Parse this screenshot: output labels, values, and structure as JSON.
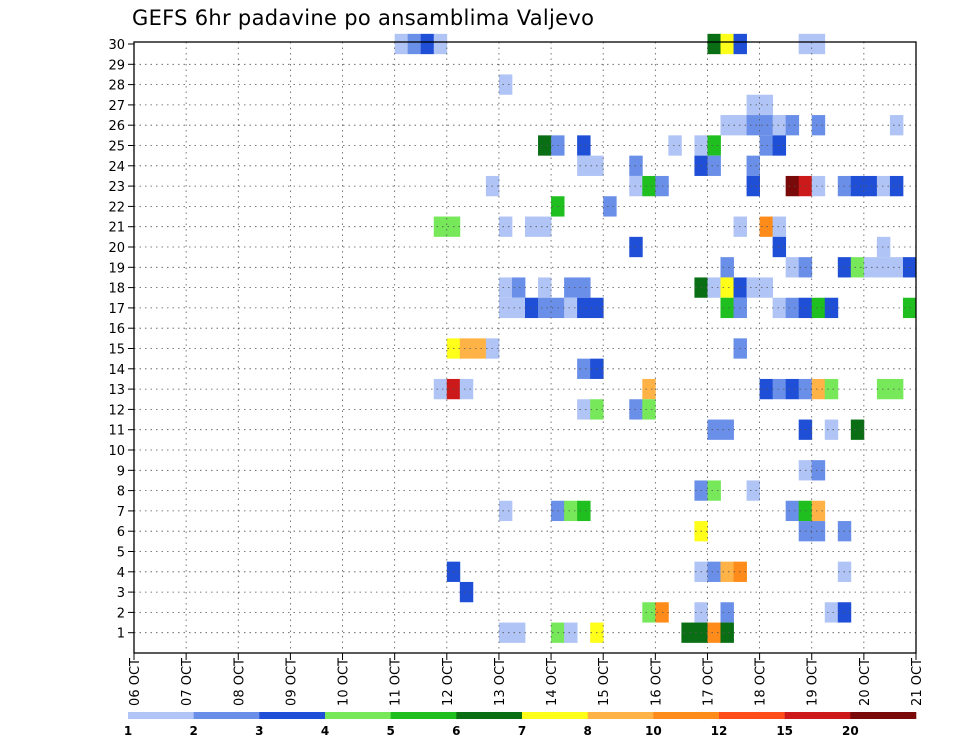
{
  "chart_data": {
    "type": "heatmap",
    "title": "GEFS 6hr padavine po ansamblima Valjevo",
    "xlabel": "",
    "ylabel": "",
    "x_ticks": [
      "06 OCT",
      "07 OCT",
      "08 OCT",
      "09 OCT",
      "10 OCT",
      "11 OCT",
      "12 OCT",
      "13 OCT",
      "14 OCT",
      "15 OCT",
      "16 OCT",
      "17 OCT",
      "18 OCT",
      "19 OCT",
      "20 OCT",
      "21 OCT"
    ],
    "y_ticks": [
      "1",
      "2",
      "3",
      "4",
      "5",
      "6",
      "7",
      "8",
      "9",
      "10",
      "11",
      "12",
      "13",
      "14",
      "15",
      "16",
      "17",
      "18",
      "19",
      "20",
      "21",
      "22",
      "23",
      "24",
      "25",
      "26",
      "27",
      "28",
      "29",
      "30"
    ],
    "x_range_days": [
      0,
      15
    ],
    "y_range": [
      0,
      30
    ],
    "grid": "dotted",
    "legend_position": "bottom",
    "colorbar": {
      "labels": [
        "1",
        "2",
        "3",
        "4",
        "5",
        "6",
        "7",
        "8",
        "10",
        "12",
        "15",
        "20"
      ],
      "colors": [
        "#b0c4f5",
        "#6a8fe8",
        "#1f4fd6",
        "#76e85a",
        "#1fbf1f",
        "#0a6e14",
        "#ffff1a",
        "#ffb347",
        "#ff8c1a",
        "#ff4d1a",
        "#cc1a1a",
        "#7a0a0a"
      ]
    },
    "cells": [
      [
        5.0,
        30,
        1
      ],
      [
        5.25,
        30,
        2
      ],
      [
        5.5,
        30,
        3
      ],
      [
        5.75,
        30,
        1
      ],
      [
        11.0,
        30,
        6
      ],
      [
        11.25,
        30,
        7
      ],
      [
        11.5,
        30,
        3
      ],
      [
        12.75,
        30,
        1
      ],
      [
        13.0,
        30,
        1
      ],
      [
        7.0,
        28,
        1
      ],
      [
        11.75,
        27,
        1
      ],
      [
        12.0,
        27,
        1
      ],
      [
        11.25,
        26,
        1
      ],
      [
        11.5,
        26,
        1
      ],
      [
        11.75,
        26,
        2
      ],
      [
        12.0,
        26,
        2
      ],
      [
        12.25,
        26,
        1
      ],
      [
        12.5,
        26,
        2
      ],
      [
        13.0,
        26,
        2
      ],
      [
        14.5,
        26,
        1
      ],
      [
        7.75,
        25,
        6
      ],
      [
        8.0,
        25,
        2
      ],
      [
        8.5,
        25,
        3
      ],
      [
        10.25,
        25,
        1
      ],
      [
        10.75,
        25,
        1
      ],
      [
        11.0,
        25,
        5
      ],
      [
        12.0,
        25,
        2
      ],
      [
        12.25,
        25,
        3
      ],
      [
        8.5,
        24,
        1
      ],
      [
        8.75,
        24,
        1
      ],
      [
        9.5,
        24,
        2
      ],
      [
        10.75,
        24,
        3
      ],
      [
        11.0,
        24,
        2
      ],
      [
        11.75,
        24,
        2
      ],
      [
        6.75,
        23,
        1
      ],
      [
        9.5,
        23,
        1
      ],
      [
        9.75,
        23,
        5
      ],
      [
        10.0,
        23,
        2
      ],
      [
        11.75,
        23,
        3
      ],
      [
        12.5,
        23,
        12
      ],
      [
        12.75,
        23,
        11
      ],
      [
        13.0,
        23,
        1
      ],
      [
        13.5,
        23,
        2
      ],
      [
        13.75,
        23,
        3
      ],
      [
        14.0,
        23,
        3
      ],
      [
        14.25,
        23,
        1
      ],
      [
        14.5,
        23,
        3
      ],
      [
        8.0,
        22,
        5
      ],
      [
        9.0,
        22,
        2
      ],
      [
        5.75,
        21,
        4
      ],
      [
        6.0,
        21,
        4
      ],
      [
        7.0,
        21,
        1
      ],
      [
        7.5,
        21,
        1
      ],
      [
        7.75,
        21,
        1
      ],
      [
        11.5,
        21,
        1
      ],
      [
        12.0,
        21,
        9
      ],
      [
        12.25,
        21,
        1
      ],
      [
        9.5,
        20,
        3
      ],
      [
        12.25,
        20,
        3
      ],
      [
        14.25,
        20,
        1
      ],
      [
        11.25,
        19,
        2
      ],
      [
        12.5,
        19,
        1
      ],
      [
        12.75,
        19,
        2
      ],
      [
        13.5,
        19,
        3
      ],
      [
        13.75,
        19,
        4
      ],
      [
        14.0,
        19,
        1
      ],
      [
        14.25,
        19,
        1
      ],
      [
        14.5,
        19,
        1
      ],
      [
        14.75,
        19,
        3
      ],
      [
        7.0,
        18,
        1
      ],
      [
        7.25,
        18,
        2
      ],
      [
        7.75,
        18,
        1
      ],
      [
        8.25,
        18,
        2
      ],
      [
        8.5,
        18,
        2
      ],
      [
        10.75,
        18,
        6
      ],
      [
        11.0,
        18,
        1
      ],
      [
        11.25,
        18,
        7
      ],
      [
        11.5,
        18,
        3
      ],
      [
        11.75,
        18,
        1
      ],
      [
        12.0,
        18,
        1
      ],
      [
        7.0,
        17,
        1
      ],
      [
        7.25,
        17,
        1
      ],
      [
        7.5,
        17,
        3
      ],
      [
        7.75,
        17,
        2
      ],
      [
        8.0,
        17,
        2
      ],
      [
        8.25,
        17,
        1
      ],
      [
        8.5,
        17,
        3
      ],
      [
        8.75,
        17,
        3
      ],
      [
        11.25,
        17,
        5
      ],
      [
        11.5,
        17,
        2
      ],
      [
        12.25,
        17,
        1
      ],
      [
        12.5,
        17,
        2
      ],
      [
        12.75,
        17,
        3
      ],
      [
        13.0,
        17,
        5
      ],
      [
        13.25,
        17,
        3
      ],
      [
        14.75,
        17,
        5
      ],
      [
        6.0,
        15,
        7
      ],
      [
        6.25,
        15,
        8
      ],
      [
        6.5,
        15,
        8
      ],
      [
        6.75,
        15,
        1
      ],
      [
        11.5,
        15,
        2
      ],
      [
        8.5,
        14,
        2
      ],
      [
        8.75,
        14,
        3
      ],
      [
        5.75,
        13,
        1
      ],
      [
        6.0,
        13,
        11
      ],
      [
        6.25,
        13,
        1
      ],
      [
        9.75,
        13,
        8
      ],
      [
        12.0,
        13,
        3
      ],
      [
        12.25,
        13,
        2
      ],
      [
        12.5,
        13,
        3
      ],
      [
        12.75,
        13,
        2
      ],
      [
        13.0,
        13,
        8
      ],
      [
        13.25,
        13,
        4
      ],
      [
        14.25,
        13,
        4
      ],
      [
        14.5,
        13,
        4
      ],
      [
        8.5,
        12,
        1
      ],
      [
        8.75,
        12,
        4
      ],
      [
        9.5,
        12,
        2
      ],
      [
        9.75,
        12,
        4
      ],
      [
        11.0,
        11,
        2
      ],
      [
        11.25,
        11,
        2
      ],
      [
        12.75,
        11,
        3
      ],
      [
        13.25,
        11,
        1
      ],
      [
        13.75,
        11,
        6
      ],
      [
        12.75,
        9,
        1
      ],
      [
        13.0,
        9,
        2
      ],
      [
        10.75,
        8,
        2
      ],
      [
        11.0,
        8,
        4
      ],
      [
        11.75,
        8,
        1
      ],
      [
        7.0,
        7,
        1
      ],
      [
        8.0,
        7,
        2
      ],
      [
        8.25,
        7,
        4
      ],
      [
        8.5,
        7,
        5
      ],
      [
        12.5,
        7,
        2
      ],
      [
        12.75,
        7,
        5
      ],
      [
        13.0,
        7,
        8
      ],
      [
        10.75,
        6,
        7
      ],
      [
        12.75,
        6,
        2
      ],
      [
        13.0,
        6,
        2
      ],
      [
        13.5,
        6,
        2
      ],
      [
        6.0,
        4,
        3
      ],
      [
        10.75,
        4,
        1
      ],
      [
        11.0,
        4,
        2
      ],
      [
        11.25,
        4,
        8
      ],
      [
        11.5,
        4,
        9
      ],
      [
        13.5,
        4,
        1
      ],
      [
        6.25,
        3,
        3
      ],
      [
        9.75,
        2,
        4
      ],
      [
        10.0,
        2,
        9
      ],
      [
        10.75,
        2,
        1
      ],
      [
        11.25,
        2,
        2
      ],
      [
        13.25,
        2,
        1
      ],
      [
        13.5,
        2,
        3
      ],
      [
        7.0,
        1,
        1
      ],
      [
        7.25,
        1,
        1
      ],
      [
        8.0,
        1,
        4
      ],
      [
        8.25,
        1,
        1
      ],
      [
        8.75,
        1,
        7
      ],
      [
        10.5,
        1,
        6
      ],
      [
        10.75,
        1,
        6
      ],
      [
        11.0,
        1,
        9
      ],
      [
        11.25,
        1,
        6
      ]
    ]
  }
}
